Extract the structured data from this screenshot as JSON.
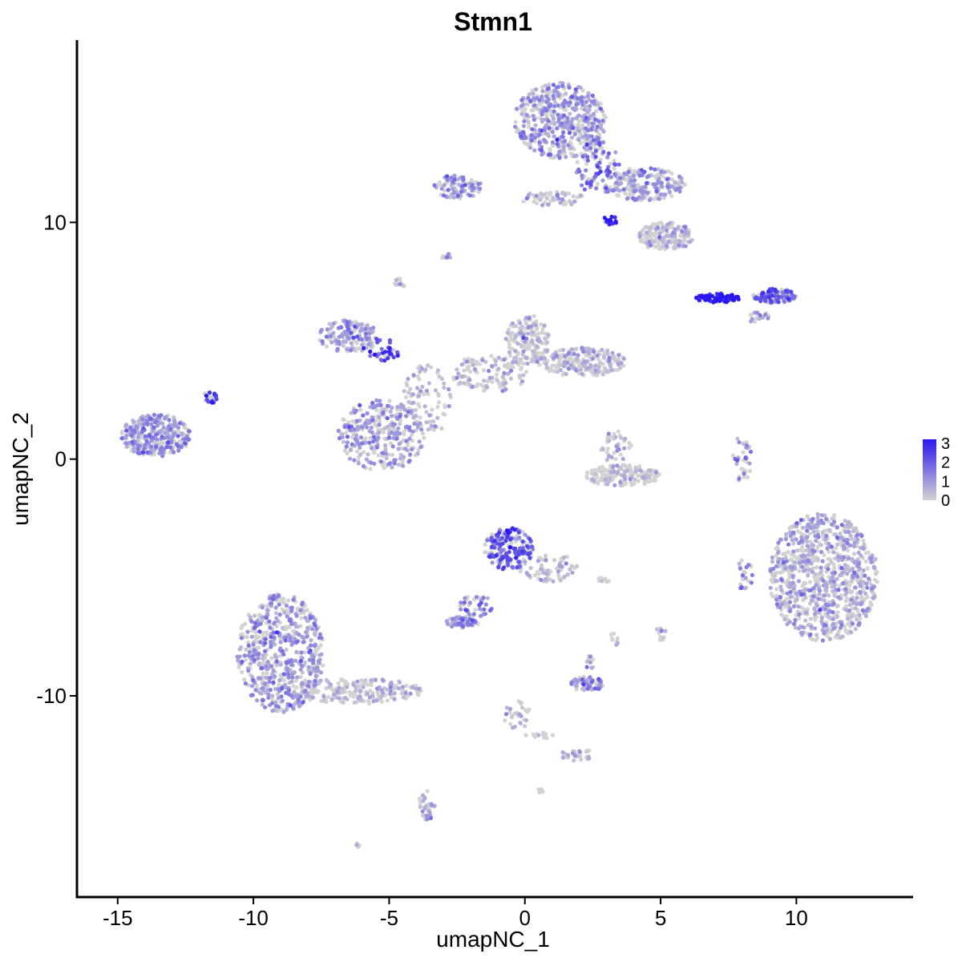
{
  "chart_data": {
    "type": "scatter",
    "title": "Stmn1",
    "xlabel": "umapNC_1",
    "ylabel": "umapNC_2",
    "xlim": [
      -16.5,
      14.3
    ],
    "ylim": [
      -18.5,
      17.7
    ],
    "xticks": [
      -15,
      -10,
      -5,
      0,
      5,
      10
    ],
    "xtick_labels": [
      "-15",
      "-10",
      "-5",
      "0",
      "5",
      "10"
    ],
    "yticks": [
      -10,
      0,
      10
    ],
    "ytick_labels": [
      "-10",
      "0",
      "10"
    ],
    "grid": false,
    "legend": {
      "placement": "right",
      "type": "colorbar",
      "labels": [
        "3",
        "2",
        "1",
        "0"
      ],
      "values": [
        3,
        2,
        1,
        0
      ],
      "range": [
        0,
        3.2
      ]
    },
    "color_scale": {
      "low": "#d3d3d3",
      "high": "#2a17f0"
    },
    "clusters": [
      {
        "cx": -13.6,
        "cy": 1.0,
        "rx": 1.3,
        "ry": 0.9,
        "n": 320,
        "expr": 0.9
      },
      {
        "cx": -11.6,
        "cy": 2.6,
        "rx": 0.3,
        "ry": 0.25,
        "n": 18,
        "expr": 2.7
      },
      {
        "cx": -9.0,
        "cy": -8.2,
        "rx": 1.6,
        "ry": 2.5,
        "n": 600,
        "expr": 0.9
      },
      {
        "cx": -6.2,
        "cy": -9.8,
        "rx": 2.4,
        "ry": 0.55,
        "n": 220,
        "expr": 0.3
      },
      {
        "cx": -6.5,
        "cy": 5.2,
        "rx": 1.1,
        "ry": 0.7,
        "n": 150,
        "expr": 0.9
      },
      {
        "cx": -5.3,
        "cy": 4.6,
        "rx": 0.7,
        "ry": 0.5,
        "n": 40,
        "expr": 2.3
      },
      {
        "cx": -5.3,
        "cy": 1.0,
        "rx": 1.6,
        "ry": 1.5,
        "n": 330,
        "expr": 0.9
      },
      {
        "cx": -3.6,
        "cy": 2.5,
        "rx": 0.9,
        "ry": 1.5,
        "n": 90,
        "expr": 0.4
      },
      {
        "cx": -2.5,
        "cy": 11.5,
        "rx": 0.9,
        "ry": 0.5,
        "n": 90,
        "expr": 0.9
      },
      {
        "cx": -4.6,
        "cy": 7.4,
        "rx": 0.2,
        "ry": 0.25,
        "n": 12,
        "expr": 0.6
      },
      {
        "cx": -2.9,
        "cy": 8.6,
        "rx": 0.2,
        "ry": 0.15,
        "n": 8,
        "expr": 0.6
      },
      {
        "cx": 1.3,
        "cy": 14.3,
        "rx": 1.7,
        "ry": 1.6,
        "n": 520,
        "expr": 0.9
      },
      {
        "cx": 2.7,
        "cy": 12.3,
        "rx": 0.8,
        "ry": 1.2,
        "n": 90,
        "expr": 1.7
      },
      {
        "cx": 4.4,
        "cy": 11.6,
        "rx": 1.5,
        "ry": 0.7,
        "n": 220,
        "expr": 0.8
      },
      {
        "cx": 5.2,
        "cy": 9.4,
        "rx": 1.0,
        "ry": 0.6,
        "n": 180,
        "expr": 0.2
      },
      {
        "cx": 1.0,
        "cy": 11.0,
        "rx": 1.2,
        "ry": 0.3,
        "n": 60,
        "expr": 0.3
      },
      {
        "cx": 3.2,
        "cy": 10.1,
        "rx": 0.3,
        "ry": 0.2,
        "n": 15,
        "expr": 2.9
      },
      {
        "cx": 0.1,
        "cy": 5.0,
        "rx": 0.8,
        "ry": 1.1,
        "n": 170,
        "expr": 0.2
      },
      {
        "cx": 2.1,
        "cy": 4.1,
        "rx": 1.6,
        "ry": 0.6,
        "n": 220,
        "expr": 0.3
      },
      {
        "cx": -1.3,
        "cy": 3.6,
        "rx": 1.4,
        "ry": 0.8,
        "n": 120,
        "expr": 0.2
      },
      {
        "cx": 7.1,
        "cy": 6.8,
        "rx": 0.8,
        "ry": 0.2,
        "n": 110,
        "expr": 3.2
      },
      {
        "cx": 9.2,
        "cy": 6.9,
        "rx": 0.8,
        "ry": 0.3,
        "n": 110,
        "expr": 1.9
      },
      {
        "cx": 8.6,
        "cy": 6.0,
        "rx": 0.4,
        "ry": 0.25,
        "n": 18,
        "expr": 0.9
      },
      {
        "cx": 8.0,
        "cy": 0.0,
        "rx": 0.35,
        "ry": 1.0,
        "n": 35,
        "expr": 1.0
      },
      {
        "cx": 11.0,
        "cy": -5.0,
        "rx": 2.0,
        "ry": 2.7,
        "n": 900,
        "expr": 0.6
      },
      {
        "cx": 8.1,
        "cy": -4.9,
        "rx": 0.3,
        "ry": 0.7,
        "n": 25,
        "expr": 0.9
      },
      {
        "cx": 3.6,
        "cy": -0.7,
        "rx": 1.4,
        "ry": 0.45,
        "n": 170,
        "expr": 0.1
      },
      {
        "cx": 3.4,
        "cy": 0.5,
        "rx": 0.6,
        "ry": 0.7,
        "n": 40,
        "expr": 0.3
      },
      {
        "cx": -0.6,
        "cy": -3.8,
        "rx": 0.9,
        "ry": 0.9,
        "n": 200,
        "expr": 2.0
      },
      {
        "cx": 0.9,
        "cy": -4.6,
        "rx": 1.1,
        "ry": 0.6,
        "n": 70,
        "expr": 0.4
      },
      {
        "cx": -1.8,
        "cy": -6.2,
        "rx": 0.6,
        "ry": 0.5,
        "n": 40,
        "expr": 1.4
      },
      {
        "cx": -2.3,
        "cy": -6.9,
        "rx": 0.6,
        "ry": 0.25,
        "n": 60,
        "expr": 1.2
      },
      {
        "cx": 2.3,
        "cy": -9.5,
        "rx": 0.6,
        "ry": 0.3,
        "n": 60,
        "expr": 0.9
      },
      {
        "cx": 2.4,
        "cy": -8.6,
        "rx": 0.2,
        "ry": 0.3,
        "n": 10,
        "expr": 0.6
      },
      {
        "cx": 3.3,
        "cy": -7.6,
        "rx": 0.2,
        "ry": 0.3,
        "n": 8,
        "expr": 0.6
      },
      {
        "cx": 2.9,
        "cy": -5.1,
        "rx": 0.3,
        "ry": 0.1,
        "n": 8,
        "expr": 0.8
      },
      {
        "cx": 5.0,
        "cy": -7.4,
        "rx": 0.2,
        "ry": 0.3,
        "n": 12,
        "expr": 0.2
      },
      {
        "cx": -0.3,
        "cy": -10.8,
        "rx": 0.5,
        "ry": 0.6,
        "n": 30,
        "expr": 0.1
      },
      {
        "cx": 2.0,
        "cy": -12.5,
        "rx": 0.7,
        "ry": 0.25,
        "n": 30,
        "expr": 0.3
      },
      {
        "cx": 0.5,
        "cy": -11.7,
        "rx": 0.6,
        "ry": 0.15,
        "n": 12,
        "expr": 0.1
      },
      {
        "cx": -3.6,
        "cy": -14.6,
        "rx": 0.3,
        "ry": 0.7,
        "n": 35,
        "expr": 0.6
      },
      {
        "cx": -6.1,
        "cy": -16.3,
        "rx": 0.1,
        "ry": 0.1,
        "n": 4,
        "expr": 0.1
      },
      {
        "cx": 0.6,
        "cy": -14.0,
        "rx": 0.1,
        "ry": 0.1,
        "n": 4,
        "expr": 0.1
      }
    ]
  }
}
